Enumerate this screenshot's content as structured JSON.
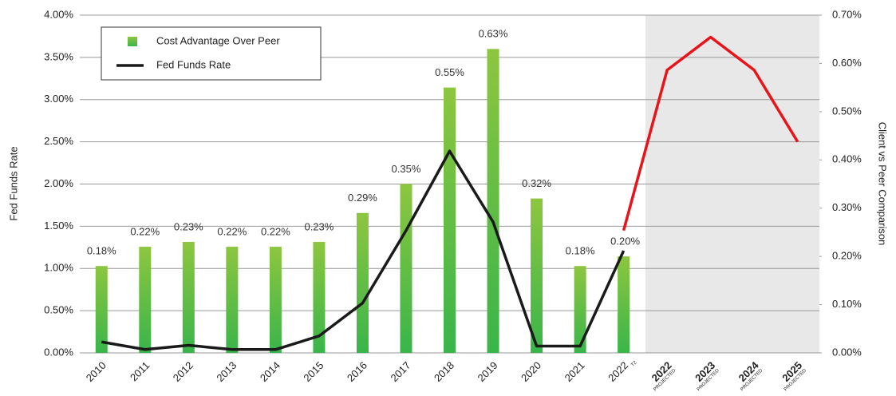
{
  "chart_data": {
    "type": "bar_line",
    "categories": [
      "2010",
      "2011",
      "2012",
      "2013",
      "2014",
      "2015",
      "2016",
      "2017",
      "2018",
      "2019",
      "2020",
      "2021",
      "2022",
      "2022",
      "2023",
      "2024",
      "2025"
    ],
    "category_notes": [
      null,
      null,
      null,
      null,
      null,
      null,
      null,
      null,
      null,
      null,
      null,
      null,
      "T2",
      "PROJECTED",
      "PROJECTED",
      "PROJECTED",
      "PROJECTED"
    ],
    "category_colors": [
      "#222",
      "#222",
      "#222",
      "#222",
      "#222",
      "#222",
      "#222",
      "#222",
      "#222",
      "#222",
      "#222",
      "#222",
      "#222",
      "#e8141a",
      "#e8141a",
      "#e8141a",
      "#e8141a"
    ],
    "shade_color": "#e8e8e8",
    "bars": {
      "name": "Cost Advantage Over Peer",
      "color": "#8dc63f",
      "color_bottom": "#39b54a",
      "axis": "y2",
      "values": [
        0.18,
        0.22,
        0.23,
        0.22,
        0.22,
        0.23,
        0.29,
        0.35,
        0.55,
        0.63,
        0.32,
        0.18,
        0.2,
        null,
        null,
        null,
        null
      ],
      "value_labels": [
        "0.18%",
        "0.22%",
        "0.23%",
        "0.22%",
        "0.22%",
        "0.23%",
        "0.29%",
        "0.35%",
        "0.55%",
        "0.63%",
        "0.32%",
        "0.18%",
        "0.20%",
        null,
        null,
        null,
        null
      ]
    },
    "series": [
      {
        "name": "Fed Funds Rate",
        "color": "#1a1a1a",
        "values": [
          0.13,
          0.04,
          0.09,
          0.04,
          0.04,
          0.2,
          0.59,
          1.45,
          2.39,
          1.55,
          0.08,
          0.08,
          1.21,
          null,
          null,
          null,
          null
        ]
      }
    ],
    "projection": {
      "color": "#e8141a",
      "values": [
        null,
        null,
        null,
        null,
        null,
        null,
        null,
        null,
        null,
        null,
        null,
        null,
        1.45,
        3.35,
        3.74,
        3.35,
        2.5
      ]
    },
    "ylabel": "Fed Funds Rate",
    "y2label": "Client vs Peer Comparison",
    "ylim": [
      0,
      4
    ],
    "yticks": [
      {
        "value": 0,
        "label": "0.00%"
      },
      {
        "value": 0.5,
        "label": "0.50%"
      },
      {
        "value": 1,
        "label": "1.00%"
      },
      {
        "value": 1.5,
        "label": "1.50%"
      },
      {
        "value": 2,
        "label": "2.00%"
      },
      {
        "value": 2.5,
        "label": "2.50%"
      },
      {
        "value": 3,
        "label": "3.00%"
      },
      {
        "value": 3.5,
        "label": "3.50%"
      },
      {
        "value": 4,
        "label": "4.00%"
      }
    ],
    "y2lim": [
      0,
      0.7
    ],
    "y2ticks": [
      {
        "value": 0,
        "label": "0.00%"
      },
      {
        "value": 0.1,
        "label": "0.10%"
      },
      {
        "value": 0.2,
        "label": "0.20%"
      },
      {
        "value": 0.3,
        "label": "0.30%"
      },
      {
        "value": 0.4,
        "label": "0.40%"
      },
      {
        "value": 0.5,
        "label": "0.50%"
      },
      {
        "value": 0.6,
        "label": "0.60%"
      },
      {
        "value": 0.7,
        "label": "0.70%"
      }
    ],
    "grid": true,
    "legend": "top-left"
  }
}
